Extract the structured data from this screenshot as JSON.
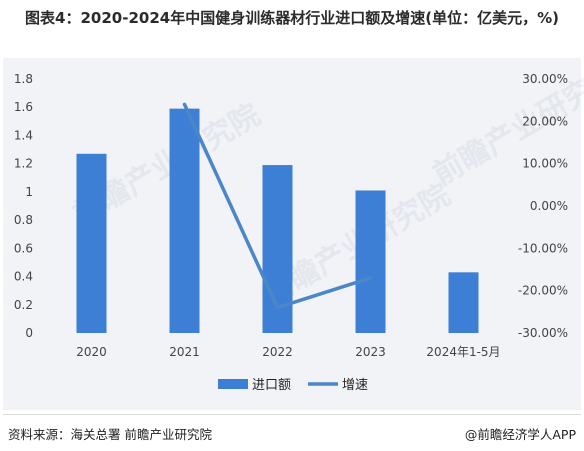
{
  "title": "图表4：2020-2024年中国健身训练器材行业进口额及增速(单位：亿美元，%)",
  "footer": {
    "source": "资料来源：海关总署 前瞻产业研究院",
    "brand": "@前瞻经济学人APP"
  },
  "watermark_text": "前瞻产业研究院",
  "colors": {
    "bar": "#3d7fd4",
    "line": "#4a86c8",
    "panel": "#f1f3f6"
  },
  "chart_data": {
    "type": "bar",
    "categories": [
      "2020",
      "2021",
      "2022",
      "2023",
      "2024年1-5月"
    ],
    "series": [
      {
        "name": "进口额",
        "type": "bar",
        "axis": "left",
        "values": [
          1.27,
          1.59,
          1.19,
          1.01,
          0.43
        ]
      },
      {
        "name": "增速",
        "type": "line",
        "axis": "right",
        "values": [
          null,
          24.0,
          -24.0,
          -17.0,
          null
        ]
      }
    ],
    "y_left": {
      "ticks": [
        "0",
        "0.2",
        "0.4",
        "0.6",
        "0.8",
        "1",
        "1.2",
        "1.4",
        "1.6",
        "1.8"
      ],
      "ylim": [
        0,
        1.8
      ]
    },
    "y_right": {
      "ticks": [
        "-30.00%",
        "-20.00%",
        "-10.00%",
        "0.00%",
        "10.00%",
        "20.00%",
        "30.00%"
      ],
      "ylim": [
        -30,
        30
      ]
    },
    "legend_position": "bottom"
  }
}
